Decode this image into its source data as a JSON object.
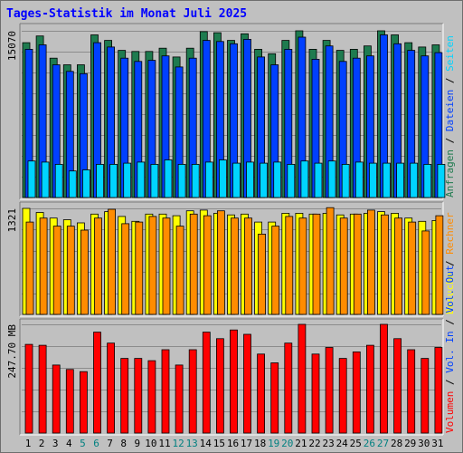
{
  "title": "Tages-Statistik im Monat Juli 2025",
  "colors": {
    "anfragen": "#1e7b4f",
    "dateien": "#0040ff",
    "seiten": "#00d4ff",
    "besuche": "#ffff00",
    "rechner": "#ff8c00",
    "volumen": "#ff0000",
    "weekend_day": "#008080",
    "day": "#000000",
    "grid": "#8c8c8c",
    "panel": "#c0c0c0"
  },
  "chart_data": [
    {
      "type": "bar",
      "panel": "top",
      "axis_max_label": "15070",
      "ylim": [
        0,
        15070
      ],
      "legend": [
        {
          "label": "Anfragen",
          "color": "#1e7b4f"
        },
        {
          "label": "Dateien",
          "color": "#0040ff"
        },
        {
          "label": "Seiten",
          "color": "#00d4ff"
        }
      ],
      "series": [
        {
          "name": "Anfragen",
          "values": [
            14000,
            14600,
            12600,
            12000,
            12000,
            14700,
            14200,
            13300,
            13200,
            13200,
            13500,
            12700,
            13500,
            15000,
            14900,
            14200,
            14800,
            13400,
            13000,
            14200,
            15070,
            13400,
            14200,
            13300,
            13400,
            13700,
            15070,
            14700,
            14000,
            13600,
            13800
          ]
        },
        {
          "name": "Dateien",
          "values": [
            13400,
            13800,
            12000,
            11400,
            11200,
            14000,
            13600,
            12600,
            12300,
            12400,
            12800,
            11800,
            12600,
            14200,
            14100,
            13900,
            14300,
            12700,
            12000,
            13400,
            14500,
            12500,
            13700,
            12300,
            12600,
            12800,
            14700,
            13900,
            13300,
            12800,
            13100
          ]
        },
        {
          "name": "Seiten",
          "values": [
            3300,
            3200,
            3000,
            2400,
            2500,
            3000,
            3000,
            3100,
            3200,
            3000,
            3400,
            3000,
            3000,
            3200,
            3400,
            3100,
            3200,
            3100,
            3200,
            3000,
            3300,
            3100,
            3300,
            3000,
            3200,
            3100,
            3100,
            3100,
            3100,
            3000,
            3000
          ]
        }
      ]
    },
    {
      "type": "bar",
      "panel": "middle",
      "axis_max_label": "1321",
      "ylim": [
        0,
        1321
      ],
      "legend": [
        {
          "label": "Besuche",
          "color": "#ffff00"
        },
        {
          "label": "Rechner",
          "color": "#ff8c00"
        }
      ],
      "series": [
        {
          "name": "Besuche",
          "values": [
            1321,
            1270,
            1200,
            1180,
            1140,
            1250,
            1280,
            1220,
            1160,
            1250,
            1250,
            1230,
            1290,
            1300,
            1260,
            1240,
            1250,
            1150,
            1150,
            1260,
            1260,
            1250,
            1260,
            1240,
            1250,
            1260,
            1280,
            1260,
            1200,
            1160,
            1170
          ]
        },
        {
          "name": "Rechner",
          "values": [
            1150,
            1200,
            1100,
            1100,
            1050,
            1200,
            1310,
            1130,
            1150,
            1220,
            1200,
            1100,
            1250,
            1230,
            1290,
            1200,
            1200,
            1000,
            1100,
            1220,
            1200,
            1250,
            1330,
            1200,
            1250,
            1300,
            1240,
            1200,
            1150,
            1040,
            1230
          ]
        }
      ]
    },
    {
      "type": "bar",
      "panel": "bottom",
      "axis_max_label": "247.70 MB",
      "ylim": [
        0,
        247.7
      ],
      "legend": [
        {
          "label": "Volumen",
          "color": "#ff0000"
        },
        {
          "label": "Vol. In",
          "color": "#0040ff"
        },
        {
          "label": "Vol. Out",
          "color": "#0040ff"
        }
      ],
      "series": [
        {
          "name": "Volumen",
          "values": [
            202,
            200,
            155,
            145,
            140,
            230,
            205,
            170,
            170,
            165,
            190,
            155,
            190,
            230,
            215,
            235,
            225,
            180,
            160,
            205,
            247.7,
            180,
            195,
            170,
            185,
            200,
            247.7,
            215,
            190,
            170,
            195
          ]
        }
      ]
    }
  ],
  "days": [
    "1",
    "2",
    "3",
    "4",
    "5",
    "6",
    "7",
    "8",
    "9",
    "10",
    "11",
    "12",
    "13",
    "14",
    "15",
    "16",
    "17",
    "18",
    "19",
    "20",
    "21",
    "22",
    "23",
    "24",
    "25",
    "26",
    "27",
    "28",
    "29",
    "30",
    "31"
  ],
  "weekend_days": [
    "5",
    "6",
    "12",
    "13",
    "19",
    "20",
    "26",
    "27"
  ]
}
